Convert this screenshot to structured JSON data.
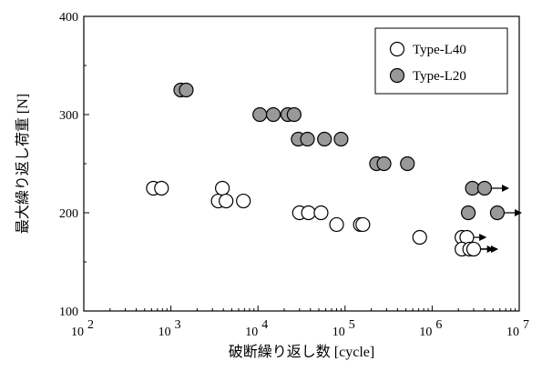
{
  "chart_data": {
    "type": "scatter",
    "xlabel": "破断繰り返し数 [cycle]",
    "ylabel": "最大繰り返し荷重 [N]",
    "x_scale": "log",
    "xlim": [
      100,
      10000000
    ],
    "ylim": [
      100,
      400
    ],
    "y_ticks": [
      100,
      200,
      300,
      400
    ],
    "x_ticks": [
      {
        "base": "10",
        "exp": "2"
      },
      {
        "base": "10",
        "exp": "3"
      },
      {
        "base": "10",
        "exp": "4"
      },
      {
        "base": "10",
        "exp": "5"
      },
      {
        "base": "10",
        "exp": "6"
      },
      {
        "base": "10",
        "exp": "7"
      }
    ],
    "grid": false,
    "legend_position": "top-right",
    "series": [
      {
        "name": "Type-L40",
        "marker": "open-circle",
        "color": "#ffffff",
        "points": [
          {
            "x": 630,
            "y": 225
          },
          {
            "x": 780,
            "y": 225
          },
          {
            "x": 3500,
            "y": 212
          },
          {
            "x": 3900,
            "y": 225
          },
          {
            "x": 4300,
            "y": 212
          },
          {
            "x": 6800,
            "y": 212
          },
          {
            "x": 30000,
            "y": 200
          },
          {
            "x": 38000,
            "y": 200
          },
          {
            "x": 53000,
            "y": 200
          },
          {
            "x": 80000,
            "y": 188
          },
          {
            "x": 150000,
            "y": 188
          },
          {
            "x": 160000,
            "y": 188
          },
          {
            "x": 720000,
            "y": 175
          },
          {
            "x": 2200000,
            "y": 175,
            "runout": true
          },
          {
            "x": 2500000,
            "y": 175
          },
          {
            "x": 2200000,
            "y": 163
          },
          {
            "x": 2700000,
            "y": 163,
            "runout": true
          },
          {
            "x": 3000000,
            "y": 163,
            "runout": true
          }
        ]
      },
      {
        "name": "Type-L20",
        "marker": "filled-circle",
        "color": "#999999",
        "points": [
          {
            "x": 1300,
            "y": 325
          },
          {
            "x": 1500,
            "y": 325
          },
          {
            "x": 10500,
            "y": 300
          },
          {
            "x": 15000,
            "y": 300
          },
          {
            "x": 22000,
            "y": 300
          },
          {
            "x": 26000,
            "y": 300
          },
          {
            "x": 29000,
            "y": 275
          },
          {
            "x": 37000,
            "y": 275
          },
          {
            "x": 58000,
            "y": 275
          },
          {
            "x": 90000,
            "y": 275
          },
          {
            "x": 230000,
            "y": 250
          },
          {
            "x": 280000,
            "y": 250
          },
          {
            "x": 520000,
            "y": 250
          },
          {
            "x": 2900000,
            "y": 225
          },
          {
            "x": 4000000,
            "y": 225,
            "runout": true
          },
          {
            "x": 2600000,
            "y": 200
          },
          {
            "x": 5600000,
            "y": 200,
            "runout": true
          }
        ]
      }
    ]
  }
}
